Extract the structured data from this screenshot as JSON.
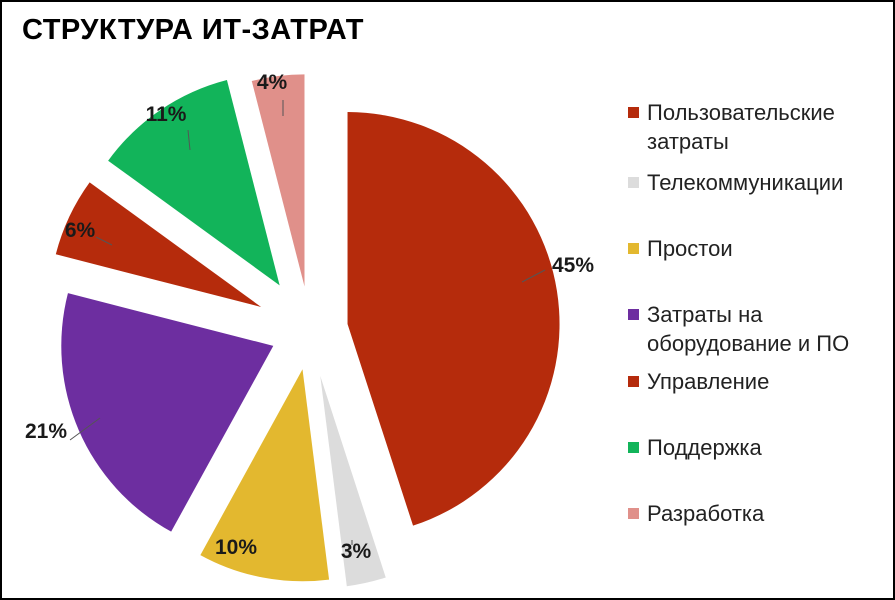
{
  "chart_data": {
    "type": "pie",
    "title": "СТРУКТУРА ИТ-ЗАТРАТ",
    "slices": [
      {
        "name": "Пользовательские затраты",
        "value": 45,
        "label": "45%",
        "color": "#b52b0c"
      },
      {
        "name": "Телекоммуникации",
        "value": 3,
        "label": "3%",
        "color": "#dcdcdc"
      },
      {
        "name": "Простои",
        "value": 10,
        "label": "10%",
        "color": "#e3b82f"
      },
      {
        "name": "Затраты на оборудование и ПО",
        "value": 21,
        "label": "21%",
        "color": "#6d2ea0"
      },
      {
        "name": "Управление",
        "value": 6,
        "label": "6%",
        "color": "#b52b0c"
      },
      {
        "name": "Поддержка",
        "value": 11,
        "label": "11%",
        "color": "#12b45a"
      },
      {
        "name": "Разработка",
        "value": 4,
        "label": "4%",
        "color": "#e0908a"
      }
    ],
    "legend_position": "right"
  }
}
